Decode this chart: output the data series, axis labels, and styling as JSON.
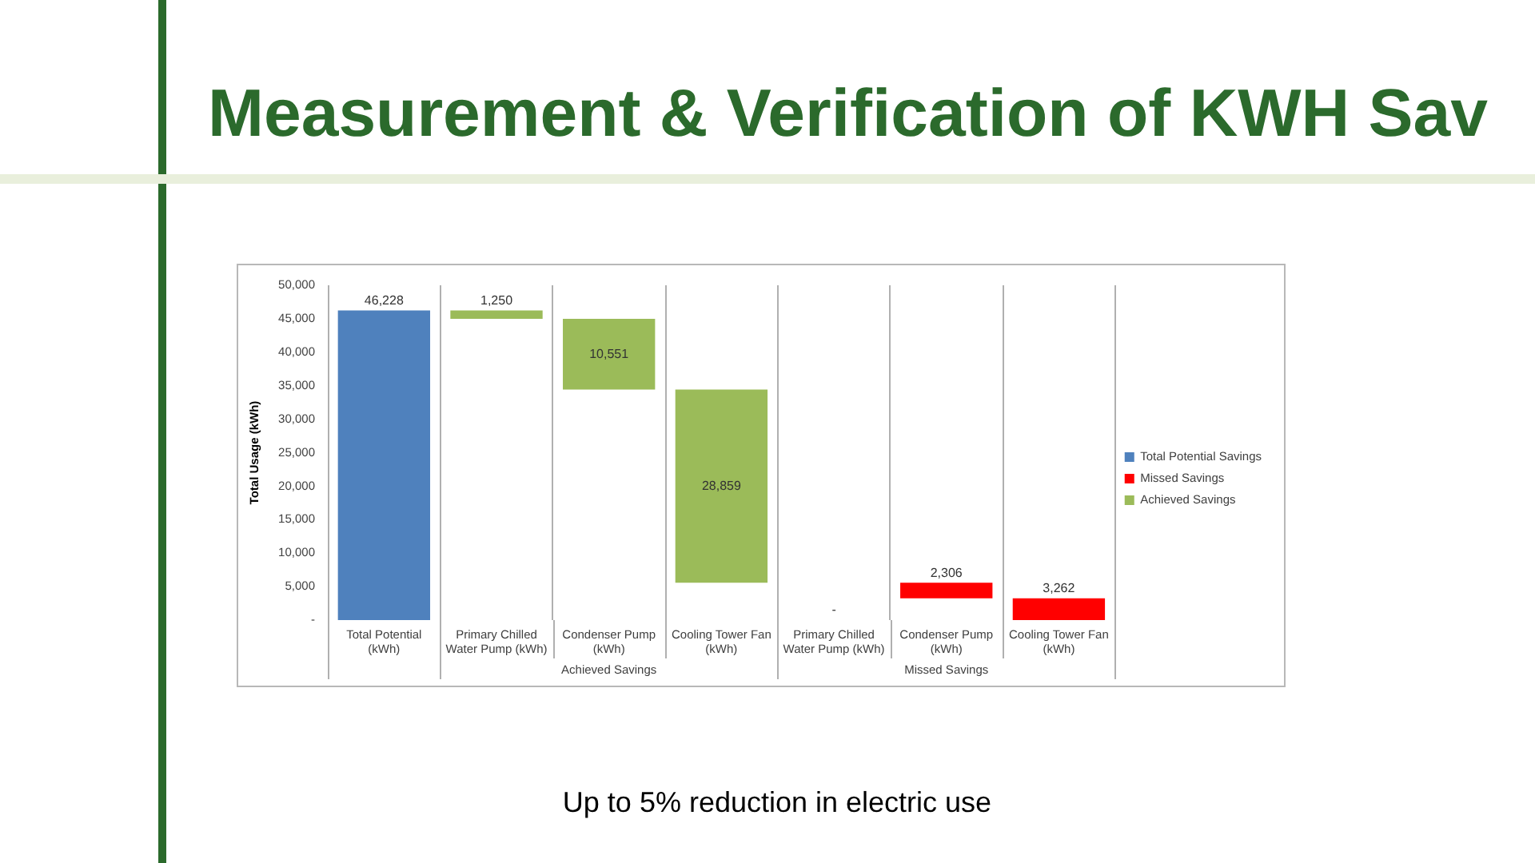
{
  "chart_data": {
    "type": "bar",
    "title": "Measurement & Verification of KWH Sav",
    "subtitle": "Up to 5% reduction in electric use",
    "ylabel": "Total Usage (kWh)",
    "annotations": [
      "Achieved Savings",
      "Missed Savings"
    ],
    "categories": [
      "Total Potential (kWh)",
      "Primary Chilled Water Pump (kWh)",
      "Condenser Pump (kWh)",
      "Cooling Tower Fan (kWh)",
      "Primary Chilled Water Pump (kWh)",
      "Condenser Pump (kWh)",
      "Cooling Tower Fan (kWh)"
    ],
    "series": [
      {
        "name": "Total Potential Savings",
        "color": "#4f81bd",
        "values": [
          46228,
          null,
          null,
          null,
          null,
          null,
          null
        ],
        "base": [
          0,
          null,
          null,
          null,
          null,
          null,
          null
        ],
        "value_labels": [
          "46,228",
          null,
          null,
          null,
          null,
          null,
          null
        ]
      },
      {
        "name": "Missed Savings",
        "color": "#ff0000",
        "values": [
          null,
          null,
          null,
          null,
          0,
          2306,
          3262
        ],
        "base": [
          null,
          null,
          null,
          null,
          null,
          3262,
          0
        ],
        "value_labels": [
          null,
          null,
          null,
          null,
          "-",
          "2,306",
          "3,262"
        ]
      },
      {
        "name": "Achieved Savings",
        "color": "#9bbb59",
        "values": [
          null,
          1250,
          10551,
          28859,
          null,
          null,
          null
        ],
        "base": [
          null,
          44978,
          34427,
          5568,
          null,
          null,
          null
        ],
        "value_labels": [
          null,
          "1,250",
          "10,551",
          "28,859",
          null,
          null,
          null
        ]
      }
    ],
    "ylim": [
      0,
      50000
    ],
    "yticks": [
      {
        "value": 0,
        "label": "-"
      },
      {
        "value": 5000,
        "label": "5,000"
      },
      {
        "value": 10000,
        "label": "10,000"
      },
      {
        "value": 15000,
        "label": "15,000"
      },
      {
        "value": 20000,
        "label": "20,000"
      },
      {
        "value": 25000,
        "label": "25,000"
      },
      {
        "value": 30000,
        "label": "30,000"
      },
      {
        "value": 35000,
        "label": "35,000"
      },
      {
        "value": 40000,
        "label": "40,000"
      },
      {
        "value": 45000,
        "label": "45,000"
      },
      {
        "value": 50000,
        "label": "50,000"
      }
    ],
    "grid": "x",
    "legend": "right"
  }
}
